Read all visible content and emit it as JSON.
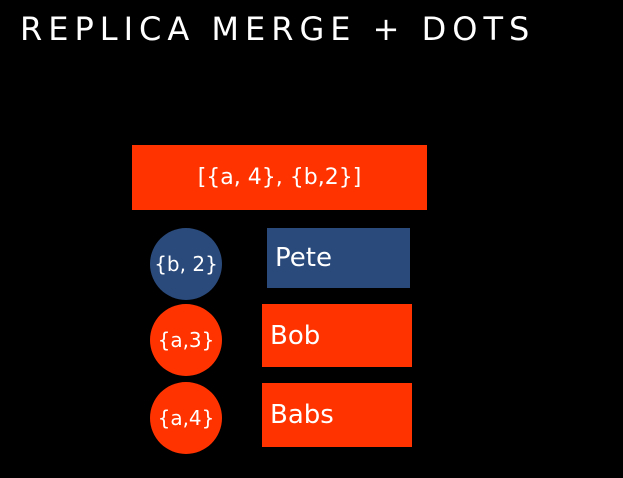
{
  "title": "REPLICA MERGE + DOTS",
  "colors": {
    "background": "#000000",
    "orange": "#ff3300",
    "navy": "#2a4a7b",
    "text": "#ffffff"
  },
  "clock": {
    "label": "[{a, 4}, {b,2}]"
  },
  "entries": [
    {
      "dot": "{b, 2}",
      "value": "Pete",
      "color": "navy"
    },
    {
      "dot": "{a,3}",
      "value": "Bob",
      "color": "orange"
    },
    {
      "dot": "{a,4}",
      "value": "Babs",
      "color": "orange"
    }
  ]
}
